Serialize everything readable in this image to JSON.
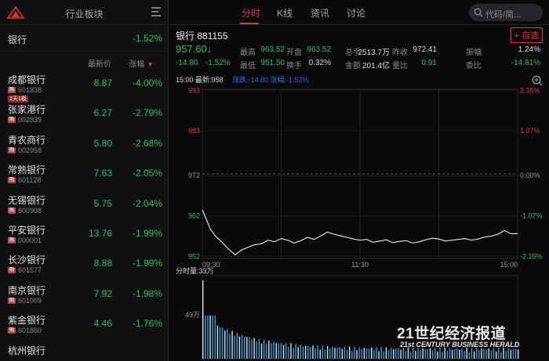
{
  "left": {
    "title": "行业板块",
    "sector": {
      "name": "银行",
      "change": "-1.52%"
    },
    "col_headers": {
      "price": "最新价",
      "change": "涨幅"
    },
    "stocks": [
      {
        "name": "成都银行",
        "code": "601838",
        "price": "8.87",
        "change": "-4.00%",
        "badge": "2天1板"
      },
      {
        "name": "张家港行",
        "code": "002839",
        "price": "6.27",
        "change": "-2.79%"
      },
      {
        "name": "青农商行",
        "code": "002958",
        "price": "5.80",
        "change": "-2.68%"
      },
      {
        "name": "常熟银行",
        "code": "601128",
        "price": "7.63",
        "change": "-2.05%"
      },
      {
        "name": "无锡银行",
        "code": "600908",
        "price": "5.75",
        "change": "-2.04%"
      },
      {
        "name": "平安银行",
        "code": "000001",
        "price": "13.76",
        "change": "-1.99%"
      },
      {
        "name": "长沙银行",
        "code": "601577",
        "price": "8.88",
        "change": "-1.99%"
      },
      {
        "name": "南京银行",
        "code": "601009",
        "price": "7.92",
        "change": "-1.98%"
      },
      {
        "name": "紫金银行",
        "code": "601860",
        "price": "4.46",
        "change": "-1.76%"
      },
      {
        "name": "杭州银行",
        "code": "",
        "price": "",
        "change": ""
      }
    ],
    "tag_glyph": "融"
  },
  "tabs": [
    "分时",
    "K线",
    "资讯",
    "讨论"
  ],
  "search_placeholder": "代码/简...",
  "quote": {
    "title": "银行 881155",
    "add_label": "+ 自选",
    "price": "957.60",
    "arrow": "↓",
    "change": "-14.80",
    "change_pct": "-1.52%",
    "fields": [
      {
        "label": "最高",
        "value": "963.52",
        "color": "g"
      },
      {
        "label": "开盘",
        "value": "963.52",
        "color": "g"
      },
      {
        "label": "总手",
        "value": "2513.7万",
        "color": "w"
      },
      {
        "label": "昨收",
        "value": "972.41",
        "color": "w"
      },
      {
        "label": "振幅",
        "value": "1.24%",
        "color": "w"
      },
      {
        "label": "最低",
        "value": "951.50",
        "color": "g"
      },
      {
        "label": "换手",
        "value": "0.32%",
        "color": "w"
      },
      {
        "label": "金额",
        "value": "201.4亿",
        "color": "w"
      },
      {
        "label": "量比",
        "value": "0.91",
        "color": "g"
      },
      {
        "label": "委比",
        "value": "-14.81%",
        "color": "g"
      }
    ]
  },
  "timebar": {
    "time": "15:00",
    "latest": "最新:958",
    "detail": "涨跌:-14.80 涨幅:-1.52%"
  },
  "chart_data": {
    "type": "line",
    "y_labels": [
      "993",
      "983",
      "972",
      "962",
      "952"
    ],
    "pct_labels": [
      "2.15%",
      "1.07%",
      "0.00%",
      "-1.07%",
      "-2.15%"
    ],
    "x_labels": [
      "09:30",
      "11:30",
      "15:00"
    ],
    "ylim": [
      951.5,
      993.3
    ],
    "prev_close": 972.41,
    "x": [
      0,
      3,
      6,
      10,
      15,
      20,
      25,
      30,
      35,
      40,
      45,
      50,
      55,
      60,
      65,
      70,
      75,
      80,
      85,
      90,
      95,
      100,
      105,
      110,
      115,
      120,
      125,
      130,
      135,
      140,
      145,
      150,
      155,
      160,
      165,
      170,
      175,
      180,
      185,
      190,
      195,
      200,
      205,
      210,
      215,
      220,
      225,
      230,
      235,
      240
    ],
    "values": [
      963.5,
      961.2,
      958.8,
      957.0,
      955.5,
      953.8,
      952.4,
      953.6,
      954.3,
      954.9,
      955.1,
      956.0,
      955.6,
      956.4,
      956.0,
      955.3,
      955.9,
      956.7,
      956.2,
      957.0,
      958.0,
      957.5,
      957.1,
      956.7,
      956.3,
      956.0,
      956.2,
      955.5,
      955.8,
      956.1,
      955.4,
      955.7,
      955.9,
      955.3,
      955.6,
      956.1,
      956.5,
      956.3,
      955.8,
      956.0,
      956.2,
      956.4,
      956.0,
      956.3,
      956.8,
      957.0,
      957.5,
      958.4,
      957.6,
      957.6
    ],
    "volume_label": "分时量:33万",
    "volume_tick": "49万"
  },
  "watermark": {
    "cn": "21世纪经济报道",
    "en": "21st CENTURY BUSINESS HERALD"
  }
}
